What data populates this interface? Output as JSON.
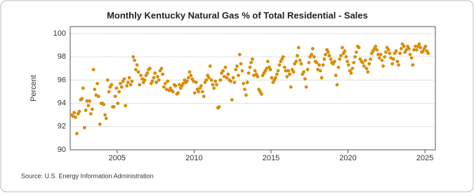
{
  "chart_data": {
    "type": "scatter",
    "title": "Monthly Kentucky Natural Gas % of Total Residential - Sales",
    "y_label": "Percent",
    "source": "Source: U.S. Energy Information Administration",
    "color": "#d98c00",
    "grid": true,
    "xlim": [
      2001.95,
      2025.68
    ],
    "ylim": [
      90,
      100.6
    ],
    "xticks": [
      2005,
      2010,
      2015,
      2020,
      2025
    ],
    "yticks": [
      90,
      92,
      94,
      96,
      98,
      100
    ],
    "x": [
      2002.04,
      2002.13,
      2002.21,
      2002.29,
      2002.38,
      2002.46,
      2002.54,
      2002.63,
      2002.71,
      2002.79,
      2002.88,
      2002.96,
      2003.04,
      2003.13,
      2003.21,
      2003.29,
      2003.38,
      2003.46,
      2003.54,
      2003.63,
      2003.71,
      2003.79,
      2003.88,
      2003.96,
      2004.04,
      2004.13,
      2004.21,
      2004.29,
      2004.38,
      2004.46,
      2004.54,
      2004.63,
      2004.71,
      2004.79,
      2004.88,
      2004.96,
      2005.04,
      2005.13,
      2005.21,
      2005.29,
      2005.38,
      2005.46,
      2005.54,
      2005.63,
      2005.71,
      2005.79,
      2005.88,
      2005.96,
      2006.04,
      2006.13,
      2006.21,
      2006.29,
      2006.38,
      2006.46,
      2006.54,
      2006.63,
      2006.71,
      2006.79,
      2006.88,
      2006.96,
      2007.04,
      2007.13,
      2007.21,
      2007.29,
      2007.38,
      2007.46,
      2007.54,
      2007.63,
      2007.71,
      2007.79,
      2007.88,
      2007.96,
      2008.04,
      2008.13,
      2008.21,
      2008.29,
      2008.38,
      2008.46,
      2008.54,
      2008.63,
      2008.71,
      2008.79,
      2008.88,
      2008.96,
      2009.04,
      2009.13,
      2009.21,
      2009.29,
      2009.38,
      2009.46,
      2009.54,
      2009.63,
      2009.71,
      2009.79,
      2009.88,
      2009.96,
      2010.04,
      2010.13,
      2010.21,
      2010.29,
      2010.38,
      2010.46,
      2010.54,
      2010.63,
      2010.71,
      2010.79,
      2010.88,
      2010.96,
      2011.04,
      2011.13,
      2011.21,
      2011.29,
      2011.38,
      2011.46,
      2011.54,
      2011.63,
      2011.71,
      2011.79,
      2011.88,
      2011.96,
      2012.04,
      2012.13,
      2012.21,
      2012.29,
      2012.38,
      2012.46,
      2012.54,
      2012.63,
      2012.71,
      2012.79,
      2012.88,
      2012.96,
      2013.04,
      2013.13,
      2013.21,
      2013.29,
      2013.38,
      2013.46,
      2013.54,
      2013.63,
      2013.71,
      2013.79,
      2013.88,
      2013.96,
      2014.04,
      2014.13,
      2014.21,
      2014.29,
      2014.38,
      2014.46,
      2014.54,
      2014.63,
      2014.71,
      2014.79,
      2014.88,
      2014.96,
      2015.04,
      2015.13,
      2015.21,
      2015.29,
      2015.38,
      2015.46,
      2015.54,
      2015.63,
      2015.71,
      2015.79,
      2015.88,
      2015.96,
      2016.04,
      2016.13,
      2016.21,
      2016.29,
      2016.38,
      2016.46,
      2016.54,
      2016.63,
      2016.71,
      2016.79,
      2016.88,
      2016.96,
      2017.04,
      2017.13,
      2017.21,
      2017.29,
      2017.38,
      2017.46,
      2017.54,
      2017.63,
      2017.71,
      2017.79,
      2017.88,
      2017.96,
      2018.04,
      2018.13,
      2018.21,
      2018.29,
      2018.38,
      2018.46,
      2018.54,
      2018.63,
      2018.71,
      2018.79,
      2018.88,
      2018.96,
      2019.04,
      2019.13,
      2019.21,
      2019.29,
      2019.38,
      2019.46,
      2019.54,
      2019.63,
      2019.71,
      2019.79,
      2019.88,
      2019.96,
      2020.04,
      2020.13,
      2020.21,
      2020.29,
      2020.38,
      2020.46,
      2020.54,
      2020.63,
      2020.71,
      2020.79,
      2020.88,
      2020.96,
      2021.04,
      2021.13,
      2021.21,
      2021.29,
      2021.38,
      2021.46,
      2021.54,
      2021.63,
      2021.71,
      2021.79,
      2021.88,
      2021.96,
      2022.04,
      2022.13,
      2022.21,
      2022.29,
      2022.38,
      2022.46,
      2022.54,
      2022.63,
      2022.71,
      2022.79,
      2022.88,
      2022.96,
      2023.04,
      2023.13,
      2023.21,
      2023.29,
      2023.38,
      2023.46,
      2023.54,
      2023.63,
      2023.71,
      2023.79,
      2023.88,
      2023.96,
      2024.04,
      2024.13,
      2024.21,
      2024.29,
      2024.38,
      2024.46,
      2024.54,
      2024.63,
      2024.71,
      2024.79,
      2024.88,
      2024.96,
      2025.04,
      2025.13,
      2025.21
    ],
    "values": [
      93.0,
      92.9,
      93.2,
      92.8,
      91.4,
      93.1,
      93.3,
      94.3,
      94.4,
      95.3,
      91.9,
      93.4,
      94.2,
      93.8,
      94.2,
      93.1,
      93.5,
      96.9,
      95.2,
      94.7,
      95.7,
      94.6,
      92.2,
      94.0,
      94.0,
      93.9,
      93.0,
      92.7,
      96.0,
      95.0,
      95.4,
      95.6,
      93.7,
      93.7,
      94.6,
      95.3,
      94.0,
      95.0,
      95.7,
      95.4,
      95.9,
      96.1,
      93.8,
      95.5,
      95.8,
      96.2,
      95.6,
      95.9,
      98.0,
      97.7,
      96.9,
      97.3,
      96.7,
      95.6,
      96.4,
      96.1,
      95.8,
      96.0,
      96.4,
      96.6,
      96.9,
      97.0,
      95.7,
      95.9,
      96.2,
      96.6,
      95.8,
      96.3,
      96.0,
      96.8,
      97.0,
      96.5,
      95.4,
      95.7,
      95.2,
      95.9,
      95.1,
      95.3,
      95.1,
      95.0,
      95.6,
      95.5,
      94.8,
      94.9,
      95.6,
      95.3,
      95.5,
      95.7,
      96.0,
      95.8,
      95.9,
      96.2,
      96.7,
      96.4,
      96.1,
      95.9,
      94.9,
      95.8,
      95.2,
      95.0,
      95.3,
      95.5,
      95.0,
      94.6,
      95.8,
      96.0,
      96.4,
      96.2,
      97.2,
      96.0,
      95.6,
      95.3,
      95.9,
      95.6,
      93.6,
      93.7,
      96.0,
      96.6,
      96.8,
      96.3,
      97.1,
      96.2,
      96.5,
      96.0,
      95.9,
      94.3,
      96.2,
      95.8,
      96.9,
      97.2,
      96.4,
      98.2,
      97.4,
      96.8,
      95.7,
      95.2,
      94.7,
      95.8,
      96.6,
      97.1,
      97.5,
      97.8,
      96.4,
      96.8,
      96.5,
      96.3,
      95.2,
      95.0,
      94.8,
      96.4,
      96.6,
      96.8,
      97.0,
      97.6,
      97.1,
      96.9,
      96.2,
      95.8,
      96.0,
      96.2,
      96.5,
      96.8,
      97.3,
      97.6,
      97.8,
      98.0,
      97.1,
      96.8,
      96.3,
      96.8,
      96.5,
      95.4,
      96.9,
      96.7,
      97.4,
      97.6,
      98.1,
      98.8,
      97.7,
      97.4,
      96.5,
      96.7,
      96.1,
      95.4,
      96.9,
      97.5,
      98.0,
      98.2,
      98.7,
      98.0,
      97.6,
      97.5,
      96.9,
      97.3,
      96.8,
      96.2,
      97.3,
      97.8,
      98.2,
      98.6,
      98.4,
      98.1,
      97.8,
      97.5,
      97.4,
      97.6,
      96.4,
      95.6,
      97.1,
      97.8,
      98.1,
      98.8,
      98.3,
      98.5,
      98.0,
      97.6,
      97.3,
      96.8,
      96.6,
      97.0,
      97.5,
      98.0,
      98.4,
      98.9,
      98.8,
      97.8,
      97.6,
      97.5,
      97.2,
      97.7,
      97.0,
      96.7,
      97.4,
      97.8,
      98.3,
      98.5,
      98.7,
      98.9,
      98.6,
      98.2,
      97.9,
      98.2,
      97.7,
      97.2,
      98.0,
      98.4,
      98.8,
      98.6,
      98.3,
      97.9,
      97.4,
      97.8,
      98.3,
      98.5,
      97.6,
      97.3,
      98.3,
      98.7,
      99.1,
      98.9,
      98.4,
      98.6,
      98.9,
      98.7,
      98.2,
      97.9,
      97.3,
      98.6,
      98.9,
      98.6,
      98.9,
      99.1,
      98.8,
      98.4,
      98.5,
      98.7,
      98.9,
      98.5,
      98.3
    ]
  }
}
